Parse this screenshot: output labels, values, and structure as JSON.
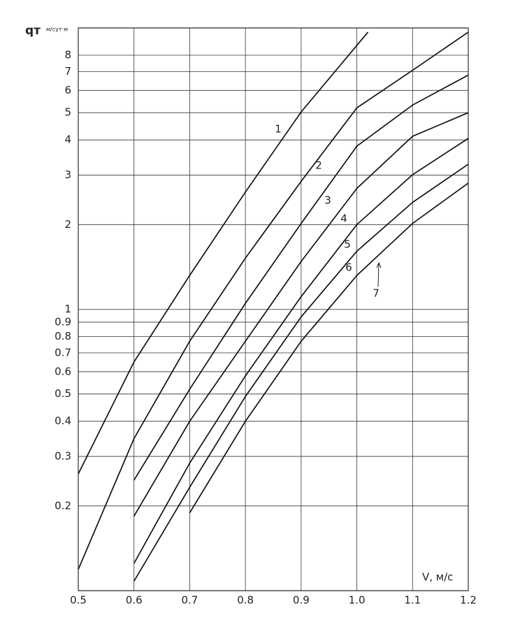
{
  "chart_data": {
    "type": "line",
    "ylabel": "qт",
    "yunit": "м/сут·м",
    "xlabel": "V, м/с",
    "log_y": true,
    "grid": true,
    "color": "#111111",
    "xlim": [
      0.5,
      1.2
    ],
    "ylim": [
      0.1,
      10
    ],
    "xticks": [
      0.5,
      0.6,
      0.7,
      0.8,
      0.9,
      {
        "value": 1,
        "label": "1.0"
      },
      1.1,
      1.2
    ],
    "yticks": [
      0.2,
      0.3,
      0.4,
      0.5,
      0.6,
      0.7,
      0.8,
      0.9,
      1,
      2,
      3,
      4,
      5,
      6,
      7,
      8
    ],
    "series": [
      {
        "name": "1",
        "x": [
          0.5,
          0.6,
          0.7,
          0.8,
          0.9,
          1.02
        ],
        "values": [
          0.26,
          0.65,
          1.32,
          2.61,
          5.03,
          9.67
        ]
      },
      {
        "name": "2",
        "x": [
          0.5,
          0.6,
          0.7,
          0.8,
          0.9,
          1.0,
          1.1,
          1.2
        ],
        "values": [
          0.119,
          0.347,
          0.77,
          1.52,
          2.85,
          5.2,
          7.07,
          9.67
        ]
      },
      {
        "name": "3",
        "x": [
          0.6,
          0.7,
          0.8,
          0.9,
          1.0,
          1.1,
          1.2
        ],
        "values": [
          0.247,
          0.52,
          1.05,
          2.02,
          3.8,
          5.32,
          6.8
        ]
      },
      {
        "name": "4",
        "x": [
          0.6,
          0.7,
          0.8,
          0.9,
          1.0,
          1.1,
          1.2
        ],
        "values": [
          0.184,
          0.4,
          0.77,
          1.48,
          2.69,
          4.12,
          5.0
        ]
      },
      {
        "name": "5",
        "x": [
          0.6,
          0.7,
          0.8,
          0.9,
          1.0,
          1.1,
          1.2
        ],
        "values": [
          0.125,
          0.284,
          0.58,
          1.11,
          2.0,
          3.01,
          4.05
        ]
      },
      {
        "name": "6",
        "x": [
          0.6,
          0.7,
          0.8,
          0.9,
          1.0,
          1.1,
          1.2
        ],
        "values": [
          0.108,
          0.233,
          0.49,
          0.94,
          1.61,
          2.4,
          3.28
        ]
      },
      {
        "name": "7",
        "x": [
          0.7,
          0.8,
          0.9,
          1.0,
          1.1,
          1.2
        ],
        "values": [
          0.189,
          0.4,
          0.77,
          1.32,
          2.02,
          2.81
        ]
      }
    ]
  }
}
